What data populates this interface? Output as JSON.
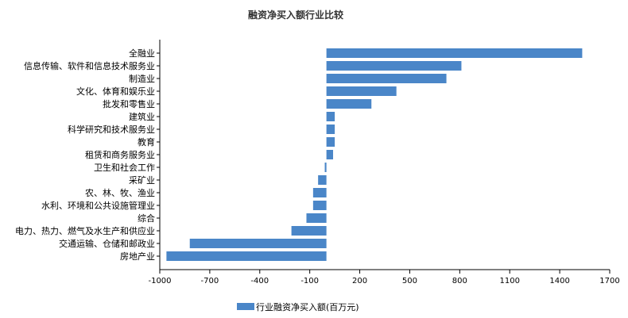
{
  "chart_data": {
    "type": "bar",
    "orientation": "horizontal",
    "title": "融资净买入额行业比较",
    "categories": [
      "全融业",
      "信息传输、软件和信息技术服务业",
      "制造业",
      "文化、体育和娱乐业",
      "批发和零售业",
      "建筑业",
      "科学研究和技术服务业",
      "教育",
      "租赁和商务服务业",
      "卫生和社会工作",
      "采矿业",
      "农、林、牧、渔业",
      "水利、环境和公共设施管理业",
      "综合",
      "电力、热力、燃气及水生产和供应业",
      "交通运输、仓储和邮政业",
      "房地产业"
    ],
    "series": [
      {
        "name": "行业融资净买入额(百万元)",
        "color": "#4a86c8",
        "values": [
          1535,
          810,
          720,
          420,
          270,
          50,
          50,
          50,
          40,
          -10,
          -50,
          -80,
          -80,
          -120,
          -210,
          -820,
          -960
        ]
      }
    ],
    "xlim": [
      -1000,
      1700
    ],
    "xticks": [
      -1000,
      -700,
      -400,
      -100,
      200,
      500,
      800,
      1100,
      1400,
      1700
    ],
    "legend_position": "bottom"
  }
}
